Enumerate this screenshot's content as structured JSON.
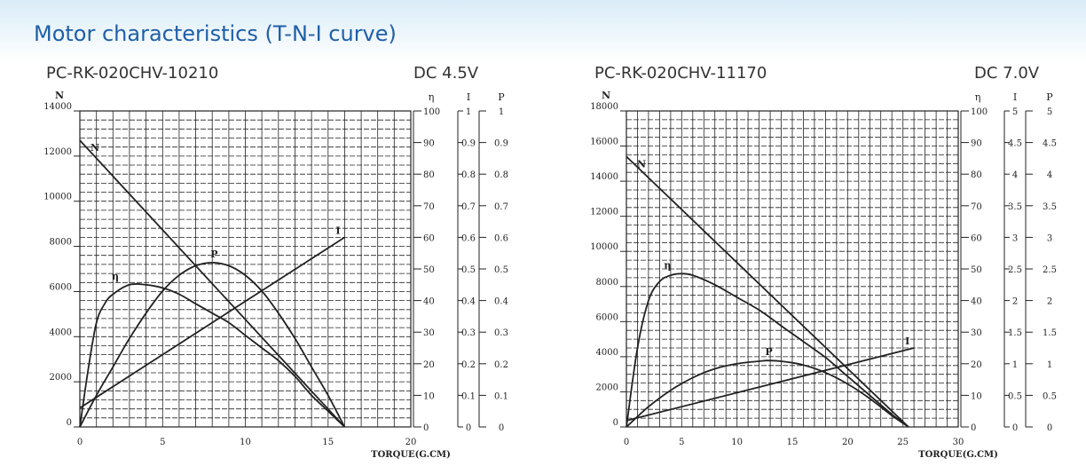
{
  "page_title": "Motor characteristics (T-N-I curve)",
  "colors": {
    "heading": "#1f5fa8",
    "line": "#222222",
    "grid": "#222222"
  },
  "chart_data": [
    {
      "type": "line",
      "title": "PC-RK-020CHV-10210",
      "voltage": "DC 4.5V",
      "xlabel": "TORQUE(G.CM)",
      "ylabel": "N",
      "xlim": [
        0,
        20
      ],
      "ylim": [
        0,
        14000
      ],
      "xticks": [
        "0",
        "5",
        "10",
        "15",
        "20"
      ],
      "yticks": [
        "0",
        "2000",
        "4000",
        "6000",
        "8000",
        "10000",
        "12000",
        "14000"
      ],
      "eta_axis": {
        "label": "η",
        "ticks": [
          "0",
          "10",
          "20",
          "30",
          "40",
          "50",
          "60",
          "70",
          "80",
          "90",
          "100"
        ]
      },
      "i_axis": {
        "label": "I",
        "ticks": [
          "0",
          "0.1",
          "0.2",
          "0.3",
          "0.4",
          "0.5",
          "0.6",
          "0.7",
          "0.8",
          "0.9",
          "1"
        ]
      },
      "p_axis": {
        "label": "P",
        "ticks": [
          "0",
          "0.1",
          "0.2",
          "0.3",
          "0.4",
          "0.5",
          "0.6",
          "0.7",
          "0.8",
          "0.9",
          "1"
        ]
      },
      "grid": true,
      "series": [
        {
          "name": "N",
          "axis": "N",
          "x": [
            0,
            16
          ],
          "values": [
            12700,
            0
          ]
        },
        {
          "name": "I",
          "axis": "I",
          "x": [
            0,
            16
          ],
          "values": [
            0.06,
            0.6
          ]
        },
        {
          "name": "η",
          "axis": "η",
          "x": [
            0,
            0.5,
            1,
            1.5,
            2,
            3,
            4,
            5,
            6,
            7,
            8,
            9,
            10,
            11,
            12,
            13,
            14,
            15,
            16
          ],
          "values": [
            0,
            18,
            33,
            39,
            42,
            45,
            45,
            44,
            42,
            39,
            36,
            33,
            29,
            25,
            21,
            16,
            10,
            5,
            0
          ]
        },
        {
          "name": "P",
          "axis": "P",
          "x": [
            0,
            1,
            2,
            3,
            4,
            5,
            6,
            7,
            8,
            9,
            10,
            11,
            12,
            13,
            14,
            15,
            16
          ],
          "values": [
            0,
            0.1,
            0.19,
            0.28,
            0.36,
            0.43,
            0.48,
            0.51,
            0.52,
            0.51,
            0.48,
            0.43,
            0.36,
            0.28,
            0.19,
            0.1,
            0
          ]
        }
      ]
    },
    {
      "type": "line",
      "title": "PC-RK-020CHV-11170",
      "voltage": "DC 7.0V",
      "xlabel": "TORQUE(G.CM)",
      "ylabel": "N",
      "xlim": [
        0,
        30
      ],
      "ylim": [
        0,
        18000
      ],
      "xticks": [
        "0",
        "5",
        "10",
        "15",
        "20",
        "25",
        "30"
      ],
      "yticks": [
        "0",
        "2000",
        "4000",
        "6000",
        "8000",
        "10000",
        "12000",
        "14000",
        "16000",
        "18000"
      ],
      "eta_axis": {
        "label": "η",
        "ticks": [
          "0",
          "10",
          "20",
          "30",
          "40",
          "50",
          "60",
          "70",
          "80",
          "90",
          "100"
        ]
      },
      "i_axis": {
        "label": "I",
        "ticks": [
          "0",
          "0.5",
          "1",
          "1.5",
          "2",
          "2.5",
          "3",
          "3.5",
          "4",
          "4.5",
          "5"
        ]
      },
      "p_axis": {
        "label": "P",
        "ticks": [
          "0",
          "0.5",
          "1",
          "1.5",
          "2",
          "2.5",
          "3",
          "3.5",
          "4",
          "4.5",
          "5"
        ]
      },
      "grid": true,
      "series": [
        {
          "name": "N",
          "axis": "N",
          "x": [
            0,
            25.5
          ],
          "values": [
            15400,
            0
          ]
        },
        {
          "name": "I",
          "axis": "I",
          "x": [
            0,
            26
          ],
          "values": [
            0.1,
            1.25
          ]
        },
        {
          "name": "η",
          "axis": "η",
          "x": [
            0,
            1,
            2,
            3,
            4,
            5,
            6,
            8,
            10,
            12,
            14,
            16,
            18,
            20,
            22,
            24,
            25.5
          ],
          "values": [
            0,
            25,
            40,
            46,
            48,
            48.5,
            48,
            45,
            41,
            37,
            32,
            27,
            22,
            16,
            10,
            4,
            0
          ]
        },
        {
          "name": "P",
          "axis": "P",
          "x": [
            0,
            2,
            4,
            6,
            8,
            10,
            12,
            12.7,
            14,
            16,
            18,
            20,
            22,
            24,
            25.5
          ],
          "values": [
            0,
            0.32,
            0.58,
            0.78,
            0.92,
            1.0,
            1.04,
            1.05,
            1.04,
            0.98,
            0.86,
            0.68,
            0.45,
            0.18,
            0
          ]
        }
      ]
    }
  ]
}
